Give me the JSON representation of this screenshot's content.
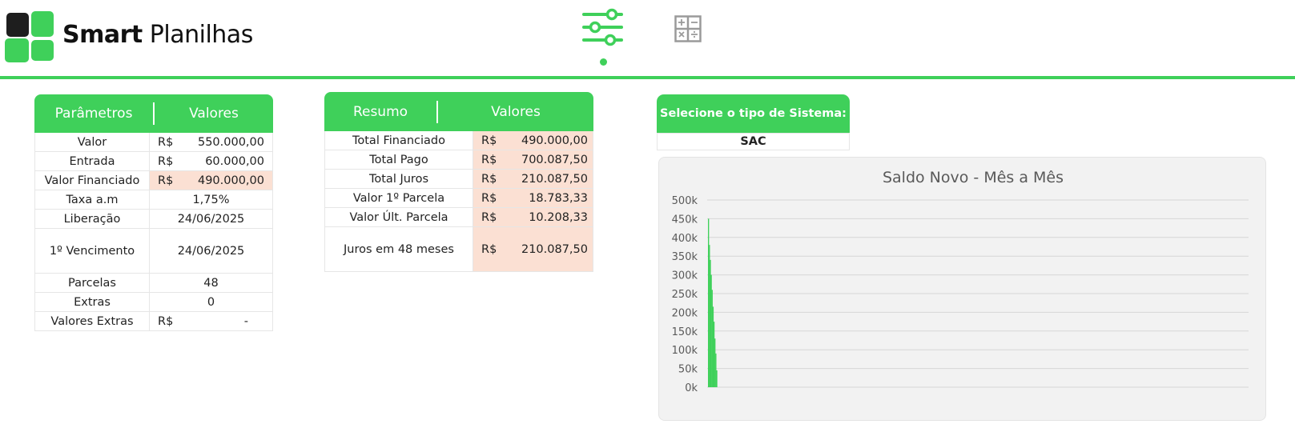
{
  "brand": {
    "name_bold": "Smart",
    "name_regular": "Planilhas"
  },
  "colors": {
    "accent": "#3fd05a",
    "logo_dark": "#1e1e1e",
    "highlight": "#fbe0d3",
    "icon_gray": "#9a9a9a",
    "chart_bg": "#f2f2f2"
  },
  "nav": {
    "icons": [
      "sliders-icon",
      "calculator-icon"
    ],
    "active_index": 0
  },
  "parametros": {
    "header": {
      "col1": "Parâmetros",
      "col2": "Valores"
    },
    "rows": [
      {
        "label": "Valor",
        "currency": "R$",
        "value": "550.000,00"
      },
      {
        "label": "Entrada",
        "currency": "R$",
        "value": "60.000,00"
      },
      {
        "label": "Valor Financiado",
        "currency": "R$",
        "value": "490.000,00"
      },
      {
        "label": "Taxa a.m",
        "value": "1,75%"
      },
      {
        "label": "Liberação",
        "value": "24/06/2025"
      },
      {
        "label": "1º Vencimento",
        "value": "24/06/2025"
      },
      {
        "label": "Parcelas",
        "value": "48"
      },
      {
        "label": "Extras",
        "value": "0"
      },
      {
        "label": "Valores Extras",
        "currency": "R$",
        "value": "-"
      }
    ]
  },
  "resumo": {
    "header": {
      "col1": "Resumo",
      "col2": "Valores"
    },
    "rows": [
      {
        "label": "Total Financiado",
        "currency": "R$",
        "value": "490.000,00"
      },
      {
        "label": "Total Pago",
        "currency": "R$",
        "value": "700.087,50"
      },
      {
        "label": "Total Juros",
        "currency": "R$",
        "value": "210.087,50"
      },
      {
        "label": "Valor 1º Parcela",
        "currency": "R$",
        "value": "18.783,33"
      },
      {
        "label": "Valor Últ. Parcela",
        "currency": "R$",
        "value": "10.208,33"
      },
      {
        "label": "Juros em 48 meses",
        "currency": "R$",
        "value": "210.087,50"
      }
    ]
  },
  "sistema": {
    "label": "Selecione o tipo de Sistema:",
    "value": "SAC"
  },
  "chart_data": {
    "type": "area",
    "title": "Saldo Novo - Mês a Mês",
    "xlabel": "",
    "ylabel": "",
    "ylim": [
      0,
      500000
    ],
    "y_ticks": [
      "0k",
      "50k",
      "100k",
      "150k",
      "200k",
      "250k",
      "300k",
      "350k",
      "400k",
      "450k",
      "500k"
    ],
    "x_count": 500,
    "series": [
      {
        "values": [
          450000,
          380000,
          340000,
          300000,
          260000,
          215000,
          175000,
          130000,
          90000,
          45000
        ]
      }
    ],
    "grid": true,
    "legend": "none"
  }
}
